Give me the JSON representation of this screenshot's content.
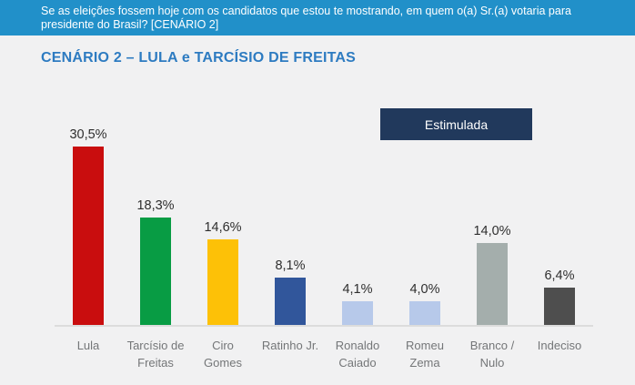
{
  "header": {
    "question": "Se as eleições fossem hoje com os candidatos que estou te mostrando, em quem o(a) Sr.(a) votaria para presidente do Brasil? [CENÁRIO 2]",
    "bg_color": "#2190c9",
    "text_color": "#ffffff"
  },
  "title": {
    "text": "CENÁRIO 2 – LULA e TARCÍSIO DE FREITAS",
    "color": "#2d7bc1"
  },
  "badge": {
    "label": "Estimulada",
    "bg_color": "#21395c",
    "text_color": "#ffffff"
  },
  "chart_data": {
    "type": "bar",
    "title": "CENÁRIO 2 – LULA e TARCÍSIO DE FREITAS",
    "annotation": "Estimulada",
    "categories": [
      "Lula",
      "Tarcísio de Freitas",
      "Ciro Gomes",
      "Ratinho Jr.",
      "Ronaldo Caiado",
      "Romeu Zema",
      "Branco / Nulo",
      "Indeciso"
    ],
    "category_lines": [
      [
        "Lula"
      ],
      [
        "Tarcísio de",
        "Freitas"
      ],
      [
        "Ciro",
        "Gomes"
      ],
      [
        "Ratinho Jr."
      ],
      [
        "Ronaldo",
        "Caiado"
      ],
      [
        "Romeu",
        "Zema"
      ],
      [
        "Branco /",
        "Nulo"
      ],
      [
        "Indeciso"
      ]
    ],
    "values": [
      30.5,
      18.3,
      14.6,
      8.1,
      4.1,
      4.0,
      14.0,
      6.4
    ],
    "value_labels": [
      "30,5%",
      "18,3%",
      "14,6%",
      "8,1%",
      "4,1%",
      "4,0%",
      "14,0%",
      "6,4%"
    ],
    "bar_colors": [
      "#c90d0e",
      "#089c44",
      "#fdc107",
      "#31569b",
      "#b7c9ea",
      "#b7c9ea",
      "#a4aeac",
      "#4e4e4e"
    ],
    "xlabel": "",
    "ylabel": "",
    "ylim": [
      0,
      33
    ],
    "grid": false,
    "legend": "none",
    "axis_line_color": "#dcdcdc",
    "value_label_color": "#2e2e2e",
    "category_label_color": "#747678"
  }
}
